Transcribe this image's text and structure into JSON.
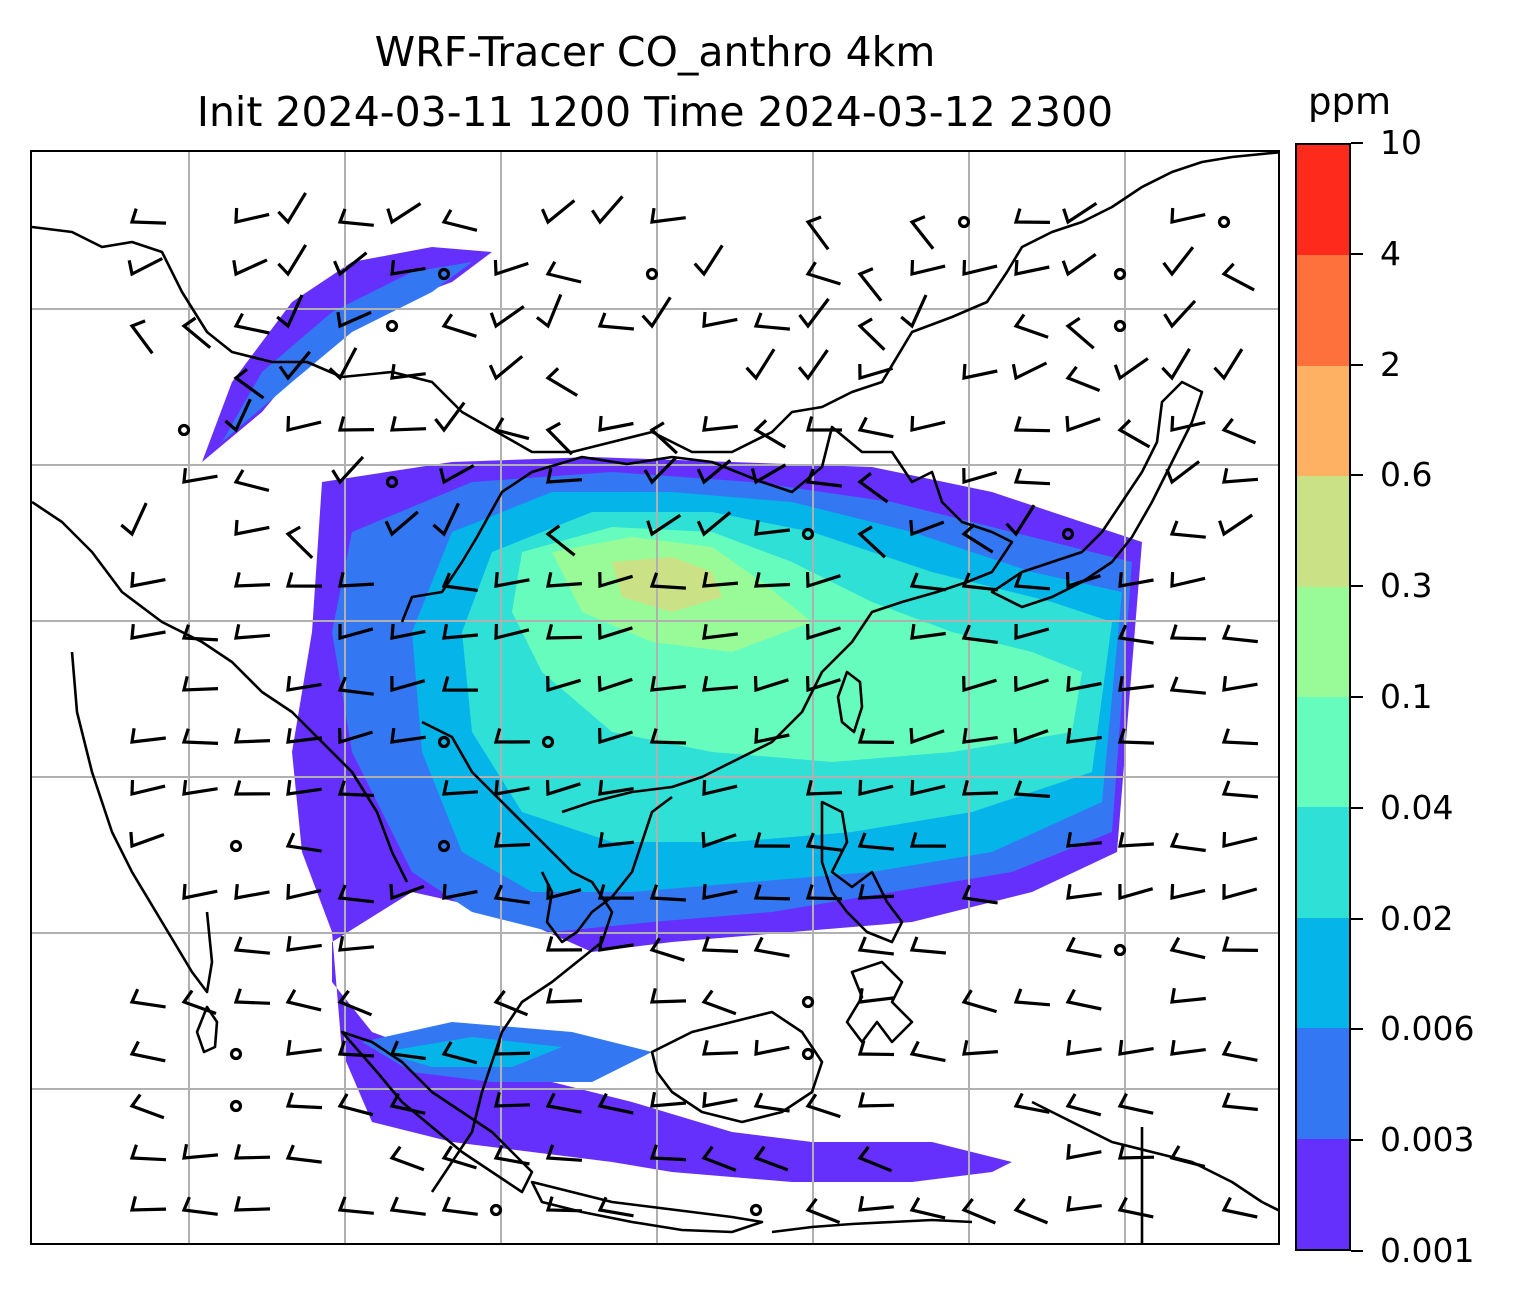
{
  "title": {
    "line1": "WRF-Tracer CO_anthro 4km",
    "line2": "Init 2024-03-11 1200 Time 2024-03-12 2300"
  },
  "colorbar": {
    "unit": "ppm",
    "levels": [
      "0.001",
      "0.003",
      "0.006",
      "0.02",
      "0.04",
      "0.1",
      "0.3",
      "0.6",
      "2",
      "4",
      "10"
    ],
    "colors": [
      "#6530fb",
      "#3377f2",
      "#05b4e9",
      "#2ee0d6",
      "#66fcbd",
      "#98fb98",
      "#cbe185",
      "#feb063",
      "#fe703c",
      "#fe2a1c"
    ]
  },
  "map": {
    "gridline_color": "#b0b0b0",
    "coastline_color": "#000000",
    "wind_barb_color": "#000000"
  }
}
